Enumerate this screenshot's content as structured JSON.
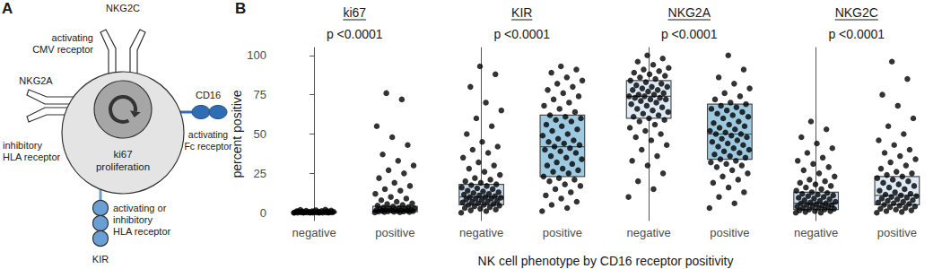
{
  "panel_labels": [
    "A",
    "B"
  ],
  "diagram": {
    "center_text": [
      "ki67",
      "proliferation"
    ],
    "receptors": [
      {
        "label": "NKG2C",
        "description": [
          "activating",
          "CMV receptor"
        ]
      },
      {
        "label": "NKG2A",
        "description": [
          "inhibitory",
          "HLA receptor"
        ]
      },
      {
        "label": "CD16",
        "description": [
          "activating",
          "Fc receptor"
        ]
      },
      {
        "label": "KIR",
        "description": [
          "activating or",
          "inhibitory",
          "HLA receptor"
        ]
      }
    ]
  },
  "xlabel": "NK cell phenotype by CD16 receptor positivity",
  "ylabel": "percent positive",
  "chart_data": [
    {
      "type": "boxplot",
      "title": "ki67",
      "subtitle": "p <0.0001",
      "categories": [
        "negative",
        "positive"
      ],
      "ylim": [
        -5,
        105
      ],
      "yticks": [
        0,
        25,
        50,
        75,
        100
      ],
      "grid": false,
      "tick_labels": true,
      "colors": [
        "#deebf7",
        "#cfe1f2"
      ],
      "boxes": [
        {
          "q1": 0,
          "median": 0.2,
          "q3": 0.6
        },
        {
          "q1": 0.6,
          "median": 1.6,
          "q3": 4
        }
      ],
      "points": [
        [
          0,
          0,
          0,
          0,
          0,
          0,
          0,
          0.1,
          0.1,
          0.1,
          0.2,
          0.2,
          0.2,
          0.3,
          0.3,
          0.3,
          0.4,
          0.4,
          0.5,
          0.5,
          0.6,
          0.6,
          0.7,
          0.8,
          0.9,
          1,
          1,
          1.1,
          1.2,
          1.4,
          1.6,
          1.8,
          2,
          0,
          0,
          0.1,
          0.2,
          0.3,
          0.5,
          0.8
        ],
        [
          0.2,
          0.3,
          0.4,
          0.5,
          0.6,
          0.7,
          0.8,
          0.9,
          1,
          1.1,
          1.2,
          1.3,
          1.4,
          1.5,
          1.6,
          1.7,
          1.8,
          2,
          2.2,
          2.4,
          2.6,
          2.8,
          3,
          3.3,
          3.6,
          4,
          4.5,
          5,
          5.5,
          6,
          7,
          8,
          9,
          10,
          12,
          14,
          15,
          17,
          19,
          22,
          25,
          27,
          30,
          33,
          37,
          43,
          48,
          55,
          72,
          76
        ]
      ]
    },
    {
      "type": "boxplot",
      "title": "KIR",
      "subtitle": "p <0.0001",
      "categories": [
        "negative",
        "positive"
      ],
      "ylim": [
        -5,
        105
      ],
      "yticks": [
        0,
        25,
        50,
        75,
        100
      ],
      "grid": false,
      "tick_labels": "x",
      "colors": [
        "#c6dbef",
        "#9ecae1"
      ],
      "boxes": [
        {
          "q1": 5,
          "median": 10,
          "q3": 18
        },
        {
          "q1": 23,
          "median": 42,
          "q3": 62
        }
      ],
      "points": [
        [
          0,
          1,
          1.5,
          2,
          2.5,
          3,
          3.5,
          4,
          4.5,
          5,
          5,
          5.5,
          6,
          6.5,
          7,
          7,
          7.5,
          8,
          8.5,
          9,
          9,
          9.5,
          10,
          10,
          10.5,
          11,
          11.5,
          12,
          12.5,
          13,
          13.5,
          14,
          15,
          15.5,
          16,
          17,
          17.5,
          18,
          19,
          20,
          21,
          22,
          24,
          26,
          28,
          30,
          32,
          35,
          38,
          40,
          42,
          45,
          50,
          55,
          60,
          65,
          70,
          80,
          88,
          93
        ],
        [
          1,
          3,
          5,
          7,
          9,
          11,
          13,
          15,
          17,
          18,
          20,
          21,
          22,
          23,
          25,
          26,
          27,
          28,
          30,
          31,
          32,
          34,
          35,
          36,
          38,
          39,
          40,
          41,
          42,
          43,
          44,
          45,
          46,
          47,
          49,
          50,
          52,
          53,
          55,
          56,
          58,
          59,
          60,
          61,
          62,
          64,
          66,
          68,
          70,
          72,
          74,
          76,
          78,
          80,
          82,
          84,
          86,
          89,
          91,
          93
        ]
      ]
    },
    {
      "type": "boxplot",
      "title": "NKG2A",
      "subtitle": "p <0.0001",
      "categories": [
        "negative",
        "positive"
      ],
      "ylim": [
        -5,
        105
      ],
      "yticks": [
        0,
        25,
        50,
        75,
        100
      ],
      "grid": false,
      "tick_labels": "x",
      "colors": [
        "#deebf7",
        "#9ecae1"
      ],
      "boxes": [
        {
          "q1": 60,
          "median": 74,
          "q3": 84
        },
        {
          "q1": 34,
          "median": 50,
          "q3": 69
        }
      ],
      "points": [
        [
          10,
          15,
          20,
          25,
          30,
          33,
          36,
          40,
          43,
          46,
          48,
          50,
          52,
          54,
          56,
          58,
          59,
          60,
          61,
          62,
          63,
          64,
          65,
          66,
          67,
          68,
          69,
          70,
          71,
          72,
          72,
          73,
          73,
          74,
          74,
          75,
          75,
          76,
          77,
          78,
          78,
          79,
          80,
          80,
          81,
          82,
          83,
          84,
          85,
          86,
          87,
          88,
          89,
          90,
          91,
          92,
          94,
          96,
          98,
          100
        ],
        [
          3,
          6,
          10,
          13,
          16,
          19,
          21,
          23,
          25,
          27,
          29,
          30,
          31,
          32,
          33,
          34,
          35,
          36,
          37,
          38,
          39,
          40,
          41,
          42,
          43,
          44,
          45,
          46,
          47,
          48,
          49,
          50,
          50,
          51,
          52,
          53,
          54,
          55,
          56,
          57,
          58,
          60,
          61,
          62,
          63,
          64,
          65,
          66,
          67,
          68,
          69,
          70,
          72,
          74,
          76,
          79,
          82,
          86,
          91,
          100
        ]
      ]
    },
    {
      "type": "boxplot",
      "title": "NKG2C",
      "subtitle": "p <0.0001",
      "categories": [
        "negative",
        "positive"
      ],
      "ylim": [
        -5,
        105
      ],
      "yticks": [
        0,
        25,
        50,
        75,
        100
      ],
      "grid": false,
      "tick_labels": "x",
      "colors": [
        "#c6dbef",
        "#deebf7"
      ],
      "boxes": [
        {
          "q1": 2,
          "median": 6,
          "q3": 13
        },
        {
          "q1": 5,
          "median": 11,
          "q3": 23
        }
      ],
      "points": [
        [
          0,
          0,
          0.5,
          1,
          1,
          1.5,
          2,
          2,
          2.5,
          3,
          3,
          3.5,
          4,
          4,
          4.5,
          5,
          5,
          5.5,
          6,
          6,
          6.5,
          7,
          7.5,
          8,
          8.5,
          9,
          9.5,
          10,
          10.5,
          11,
          11.5,
          12,
          12.5,
          13,
          14,
          15,
          16,
          17,
          18,
          19,
          20,
          21,
          23,
          25,
          27,
          29,
          31,
          33,
          35,
          38,
          41,
          44,
          48,
          53,
          58
        ],
        [
          0,
          0.5,
          1,
          1.5,
          2,
          2.5,
          3,
          3.5,
          4,
          4.5,
          5,
          5.5,
          6,
          6.5,
          7,
          7.5,
          8,
          8.5,
          9,
          9.5,
          10,
          10.5,
          11,
          11.5,
          12,
          13,
          14,
          15,
          16,
          17,
          18,
          19,
          20,
          21,
          22,
          23,
          24,
          25,
          26,
          28,
          30,
          32,
          34,
          36,
          38,
          40,
          43,
          46,
          50,
          55,
          60,
          68,
          75,
          85,
          96
        ]
      ]
    }
  ]
}
